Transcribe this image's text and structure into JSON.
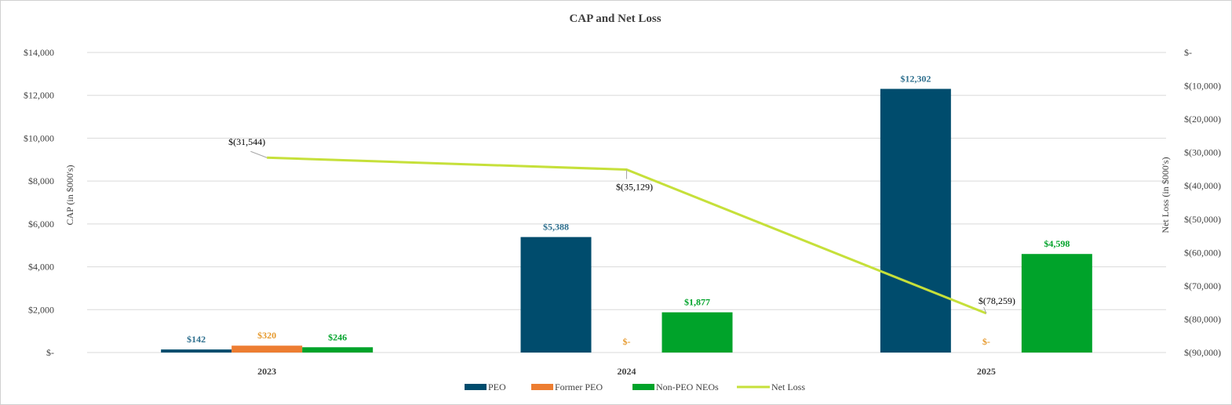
{
  "chart_data": {
    "type": "bar",
    "title": "CAP and Net Loss",
    "categories": [
      "2023",
      "2024",
      "2025"
    ],
    "ylabel": "CAP (in $000's)",
    "y2label": "Net Loss (in $000's)",
    "ylim": [
      0,
      14000
    ],
    "y2lim": [
      -90000,
      0
    ],
    "y_ticks": [
      {
        "value": 0,
        "label": "$-"
      },
      {
        "value": 2000,
        "label": "$2,000"
      },
      {
        "value": 4000,
        "label": "$4,000"
      },
      {
        "value": 6000,
        "label": "$6,000"
      },
      {
        "value": 8000,
        "label": "$8,000"
      },
      {
        "value": 10000,
        "label": "$10,000"
      },
      {
        "value": 12000,
        "label": "$12,000"
      },
      {
        "value": 14000,
        "label": "$14,000"
      }
    ],
    "y2_ticks": [
      {
        "value": 0,
        "label": "$-"
      },
      {
        "value": -10000,
        "label": "$(10,000)"
      },
      {
        "value": -20000,
        "label": "$(20,000)"
      },
      {
        "value": -30000,
        "label": "$(30,000)"
      },
      {
        "value": -40000,
        "label": "$(40,000)"
      },
      {
        "value": -50000,
        "label": "$(50,000)"
      },
      {
        "value": -60000,
        "label": "$(60,000)"
      },
      {
        "value": -70000,
        "label": "$(70,000)"
      },
      {
        "value": -80000,
        "label": "$(80,000)"
      },
      {
        "value": -90000,
        "label": "$(90,000)"
      }
    ],
    "grid": true,
    "legend_position": "bottom",
    "series": [
      {
        "name": "PEO",
        "kind": "bar",
        "color": "#004c6d",
        "label_color": "#2e6f8e",
        "values": [
          142,
          5388,
          12302
        ],
        "labels": [
          "$142",
          "$5,388",
          "$12,302"
        ]
      },
      {
        "name": "Former PEO",
        "kind": "bar",
        "color": "#ed7d31",
        "label_color": "#e69a2e",
        "values": [
          320,
          0,
          0
        ],
        "labels": [
          "$320",
          "$-",
          "$-"
        ]
      },
      {
        "name": "Non-PEO NEOs",
        "kind": "bar",
        "color": "#00a32a",
        "label_color": "#00a32a",
        "values": [
          246,
          1877,
          4598
        ],
        "labels": [
          "$246",
          "$1,877",
          "$4,598"
        ]
      },
      {
        "name": "Net Loss",
        "kind": "line",
        "axis": "secondary",
        "color": "#c6e03a",
        "values": [
          -31544,
          -35129,
          -78259
        ],
        "labels": [
          "$(31,544)",
          "$(35,129)",
          "$(78,259)"
        ]
      }
    ]
  }
}
